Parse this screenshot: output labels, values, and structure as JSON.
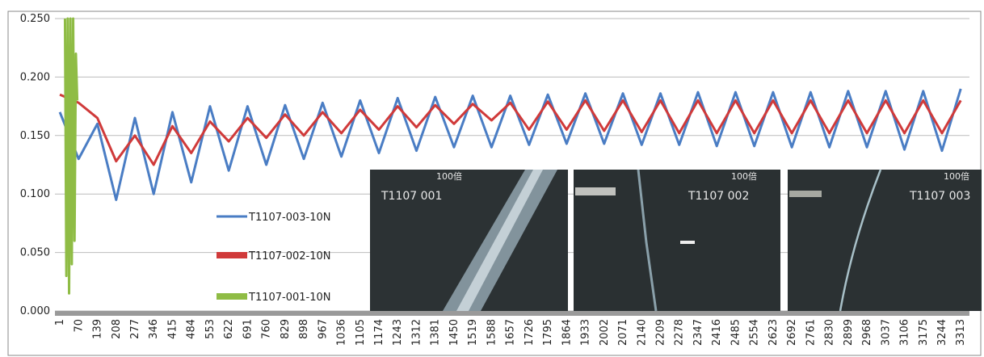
{
  "chart_data": {
    "type": "line",
    "x": [
      1,
      70,
      139,
      208,
      277,
      346,
      415,
      484,
      553,
      622,
      691,
      760,
      829,
      898,
      967,
      1036,
      1105,
      1174,
      1243,
      1312,
      1381,
      1450,
      1519,
      1588,
      1657,
      1726,
      1795,
      1864,
      1933,
      2002,
      2071,
      2140,
      2209,
      2278,
      2347,
      2416,
      2485,
      2554,
      2623,
      2692,
      2761,
      2830,
      2899,
      2968,
      3037,
      3106,
      3175,
      3244,
      3313
    ],
    "xlim": [
      -17,
      3345
    ],
    "ylim": [
      0,
      0.25
    ],
    "yticks": [
      {
        "value": 0,
        "label": "0.000"
      },
      {
        "value": 0.05,
        "label": "0.050"
      },
      {
        "value": 0.1,
        "label": "0.100"
      },
      {
        "value": 0.15,
        "label": "0.150"
      },
      {
        "value": 0.2,
        "label": "0.200"
      },
      {
        "value": 0.25,
        "label": "0.250"
      }
    ],
    "grid": true,
    "legend": "left",
    "series": [
      {
        "name": "T1107-003-10N",
        "color": "#4a7dc4",
        "values": [
          0.17,
          0.13,
          0.16,
          0.095,
          0.165,
          0.1,
          0.17,
          0.11,
          0.175,
          0.12,
          0.175,
          0.125,
          0.176,
          0.13,
          0.178,
          0.132,
          0.18,
          0.135,
          0.182,
          0.137,
          0.183,
          0.14,
          0.184,
          0.14,
          0.184,
          0.142,
          0.185,
          0.143,
          0.186,
          0.143,
          0.186,
          0.142,
          0.186,
          0.142,
          0.187,
          0.141,
          0.187,
          0.141,
          0.187,
          0.14,
          0.187,
          0.14,
          0.188,
          0.14,
          0.188,
          0.138,
          0.188,
          0.137,
          0.19
        ]
      },
      {
        "name": "T1107-002-10N",
        "color": "#d03a3a",
        "values": [
          0.185,
          0.178,
          0.165,
          0.128,
          0.15,
          0.125,
          0.158,
          0.135,
          0.162,
          0.145,
          0.165,
          0.148,
          0.168,
          0.15,
          0.17,
          0.152,
          0.172,
          0.155,
          0.175,
          0.157,
          0.176,
          0.16,
          0.177,
          0.163,
          0.178,
          0.155,
          0.179,
          0.155,
          0.18,
          0.154,
          0.18,
          0.153,
          0.18,
          0.152,
          0.18,
          0.152,
          0.18,
          0.152,
          0.18,
          0.152,
          0.18,
          0.152,
          0.18,
          0.152,
          0.18,
          0.152,
          0.18,
          0.152,
          0.18
        ]
      },
      {
        "name": "T1107-001-10N",
        "color": "#8fbc45",
        "x": [
          20,
          25,
          30,
          35,
          40,
          45,
          50,
          55,
          60,
          65
        ],
        "values": [
          0.25,
          0.03,
          0.25,
          0.015,
          0.25,
          0.04,
          0.25,
          0.06,
          0.22,
          0.18
        ]
      }
    ],
    "insets": [
      {
        "magnification": "100倍",
        "label": "T1107 001"
      },
      {
        "magnification": "100倍",
        "label": "T1107 002"
      },
      {
        "magnification": "100倍",
        "label": "T1107 003"
      }
    ]
  }
}
